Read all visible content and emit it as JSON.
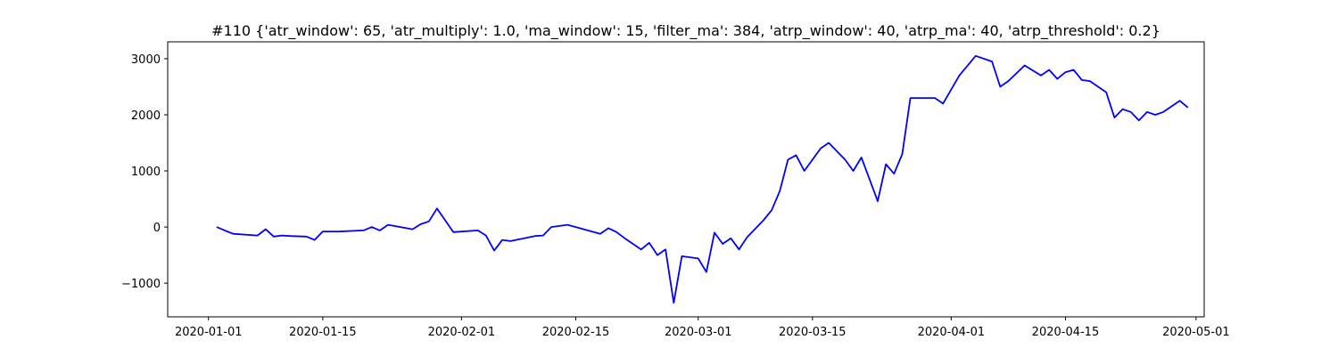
{
  "chart_data": {
    "type": "line",
    "title": "#110 {'atr_window': 65, 'atr_multiply': 1.0, 'ma_window': 15, 'filter_ma': 384, 'atrp_window': 40, 'atrp_ma': 40, 'atrp_threshold': 0.2}",
    "xlabel": "",
    "ylabel": "",
    "x_scale": "date",
    "xlim": [
      "2019-12-27",
      "2020-05-02"
    ],
    "ylim": [
      -1600,
      3300
    ],
    "x_ticks": [
      "2020-01-01",
      "2020-01-15",
      "2020-02-01",
      "2020-02-15",
      "2020-03-01",
      "2020-03-15",
      "2020-04-01",
      "2020-04-15",
      "2020-05-01"
    ],
    "y_ticks": [
      -1000,
      0,
      1000,
      2000,
      3000
    ],
    "y_tick_labels": [
      "−1000",
      "0",
      "1000",
      "2000",
      "3000"
    ],
    "grid": false,
    "legend": "none",
    "line_color": "#0000ff",
    "series": [
      {
        "x": [
          "2020-01-02",
          "2020-01-03",
          "2020-01-04",
          "2020-01-07",
          "2020-01-08",
          "2020-01-09",
          "2020-01-10",
          "2020-01-11",
          "2020-01-13",
          "2020-01-14",
          "2020-01-15",
          "2020-01-17",
          "2020-01-20",
          "2020-01-21",
          "2020-01-22",
          "2020-01-23",
          "2020-01-26",
          "2020-01-27",
          "2020-01-28",
          "2020-01-29",
          "2020-01-30",
          "2020-01-31",
          "2020-02-03",
          "2020-02-04",
          "2020-02-05",
          "2020-02-06",
          "2020-02-07",
          "2020-02-10",
          "2020-02-11",
          "2020-02-12",
          "2020-02-14",
          "2020-02-18",
          "2020-02-19",
          "2020-02-20",
          "2020-02-21",
          "2020-02-23",
          "2020-02-24",
          "2020-02-25",
          "2020-02-26",
          "2020-02-27",
          "2020-02-28",
          "2020-03-01",
          "2020-03-02",
          "2020-03-03",
          "2020-03-04",
          "2020-03-05",
          "2020-03-06",
          "2020-03-07",
          "2020-03-09",
          "2020-03-10",
          "2020-03-11",
          "2020-03-12",
          "2020-03-13",
          "2020-03-14",
          "2020-03-16",
          "2020-03-17",
          "2020-03-19",
          "2020-03-20",
          "2020-03-21",
          "2020-03-23",
          "2020-03-24",
          "2020-03-25",
          "2020-03-26",
          "2020-03-27",
          "2020-03-30",
          "2020-03-31",
          "2020-04-02",
          "2020-04-04",
          "2020-04-06",
          "2020-04-07",
          "2020-04-08",
          "2020-04-10",
          "2020-04-12",
          "2020-04-13",
          "2020-04-14",
          "2020-04-15",
          "2020-04-16",
          "2020-04-17",
          "2020-04-18",
          "2020-04-20",
          "2020-04-21",
          "2020-04-22",
          "2020-04-23",
          "2020-04-24",
          "2020-04-25",
          "2020-04-26",
          "2020-04-27",
          "2020-04-28",
          "2020-04-29",
          "2020-04-30"
        ],
        "y": [
          0,
          -60,
          -120,
          -150,
          -40,
          -170,
          -150,
          -160,
          -170,
          -230,
          -80,
          -80,
          -60,
          0,
          -60,
          40,
          -40,
          50,
          100,
          330,
          120,
          -90,
          -60,
          -150,
          -420,
          -230,
          -250,
          -160,
          -150,
          0,
          40,
          -120,
          -20,
          -90,
          -200,
          -400,
          -280,
          -500,
          -400,
          -1350,
          -520,
          -560,
          -800,
          -100,
          -300,
          -200,
          -400,
          -180,
          120,
          300,
          640,
          1200,
          1280,
          1000,
          1400,
          1500,
          1200,
          1000,
          1240,
          460,
          1120,
          950,
          1300,
          2300,
          2300,
          2200,
          2700,
          3050,
          2950,
          2500,
          2600,
          2880,
          2700,
          2800,
          2640,
          2760,
          2800,
          2620,
          2600,
          2400,
          1950,
          2100,
          2050,
          1900,
          2050,
          2000,
          2050,
          2150,
          2250,
          2130
        ]
      }
    ]
  }
}
